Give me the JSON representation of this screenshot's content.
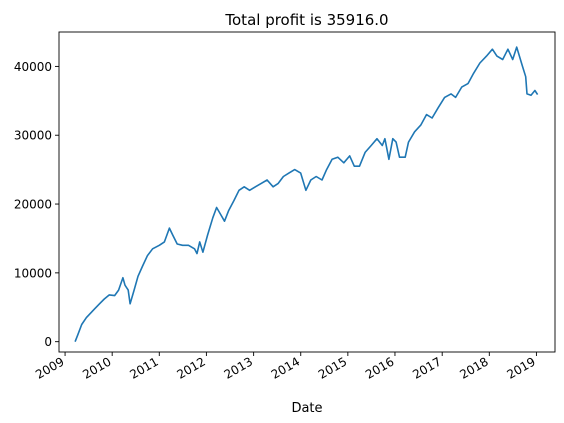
{
  "chart_data": {
    "type": "line",
    "title": "Total profit is 35916.0",
    "xlabel": "Date",
    "ylabel": "",
    "xlim": [
      "2008-11-15",
      "2019-05-25"
    ],
    "ylim": [
      -1500,
      45000
    ],
    "x_ticks": [
      {
        "date": "2009-01-01",
        "label": "2009"
      },
      {
        "date": "2010-01-01",
        "label": "2010"
      },
      {
        "date": "2011-01-01",
        "label": "2011"
      },
      {
        "date": "2012-01-01",
        "label": "2012"
      },
      {
        "date": "2013-01-01",
        "label": "2013"
      },
      {
        "date": "2014-01-01",
        "label": "2014"
      },
      {
        "date": "2015-01-01",
        "label": "2015"
      },
      {
        "date": "2016-01-01",
        "label": "2016"
      },
      {
        "date": "2017-01-01",
        "label": "2017"
      },
      {
        "date": "2018-01-01",
        "label": "2018"
      },
      {
        "date": "2019-01-01",
        "label": "2019"
      }
    ],
    "y_ticks": [
      0,
      10000,
      20000,
      30000,
      40000
    ],
    "grid": false,
    "legend": "none",
    "line_color": "#1f77b4",
    "series": [
      {
        "points": [
          [
            "2009-03-20",
            0
          ],
          [
            "2009-04-10",
            1000
          ],
          [
            "2009-05-10",
            2500
          ],
          [
            "2009-06-15",
            3500
          ],
          [
            "2009-07-20",
            4200
          ],
          [
            "2009-08-20",
            4800
          ],
          [
            "2009-09-25",
            5500
          ],
          [
            "2009-11-01",
            6200
          ],
          [
            "2009-12-10",
            6800
          ],
          [
            "2010-01-20",
            6700
          ],
          [
            "2010-02-20",
            7500
          ],
          [
            "2010-03-25",
            9300
          ],
          [
            "2010-04-10",
            8200
          ],
          [
            "2010-05-05",
            7500
          ],
          [
            "2010-05-20",
            5500
          ],
          [
            "2010-06-20",
            7500
          ],
          [
            "2010-07-20",
            9500
          ],
          [
            "2010-08-25",
            11000
          ],
          [
            "2010-10-01",
            12500
          ],
          [
            "2010-11-10",
            13500
          ],
          [
            "2011-01-01",
            14000
          ],
          [
            "2011-02-10",
            14500
          ],
          [
            "2011-03-20",
            16500
          ],
          [
            "2011-04-15",
            15500
          ],
          [
            "2011-05-20",
            14200
          ],
          [
            "2011-07-01",
            14000
          ],
          [
            "2011-08-15",
            14000
          ],
          [
            "2011-10-01",
            13500
          ],
          [
            "2011-10-20",
            12800
          ],
          [
            "2011-11-10",
            14500
          ],
          [
            "2011-12-05",
            13000
          ],
          [
            "2012-01-10",
            15500
          ],
          [
            "2012-02-20",
            18000
          ],
          [
            "2012-03-20",
            19500
          ],
          [
            "2012-04-20",
            18500
          ],
          [
            "2012-05-20",
            17500
          ],
          [
            "2012-06-20",
            19000
          ],
          [
            "2012-08-01",
            20500
          ],
          [
            "2012-09-10",
            22000
          ],
          [
            "2012-10-20",
            22500
          ],
          [
            "2012-12-01",
            22000
          ],
          [
            "2013-01-15",
            22500
          ],
          [
            "2013-03-01",
            23000
          ],
          [
            "2013-04-15",
            23500
          ],
          [
            "2013-06-01",
            22500
          ],
          [
            "2013-07-10",
            23000
          ],
          [
            "2013-08-20",
            24000
          ],
          [
            "2013-10-01",
            24500
          ],
          [
            "2013-11-15",
            25000
          ],
          [
            "2014-01-01",
            24500
          ],
          [
            "2014-02-10",
            22000
          ],
          [
            "2014-03-20",
            23500
          ],
          [
            "2014-05-01",
            24000
          ],
          [
            "2014-06-15",
            23500
          ],
          [
            "2014-07-20",
            25000
          ],
          [
            "2014-09-01",
            26500
          ],
          [
            "2014-10-15",
            26800
          ],
          [
            "2014-12-01",
            26000
          ],
          [
            "2015-01-15",
            27000
          ],
          [
            "2015-02-20",
            25500
          ],
          [
            "2015-04-01",
            25500
          ],
          [
            "2015-05-15",
            27500
          ],
          [
            "2015-07-01",
            28500
          ],
          [
            "2015-08-15",
            29500
          ],
          [
            "2015-09-25",
            28500
          ],
          [
            "2015-10-15",
            29500
          ],
          [
            "2015-11-15",
            26500
          ],
          [
            "2015-12-15",
            29500
          ],
          [
            "2016-01-10",
            29000
          ],
          [
            "2016-02-05",
            26800
          ],
          [
            "2016-03-20",
            26800
          ],
          [
            "2016-04-15",
            29000
          ],
          [
            "2016-06-01",
            30500
          ],
          [
            "2016-07-20",
            31500
          ],
          [
            "2016-09-01",
            33000
          ],
          [
            "2016-10-15",
            32500
          ],
          [
            "2016-12-01",
            34000
          ],
          [
            "2017-01-20",
            35500
          ],
          [
            "2017-03-10",
            36000
          ],
          [
            "2017-04-15",
            35500
          ],
          [
            "2017-06-01",
            37000
          ],
          [
            "2017-07-20",
            37500
          ],
          [
            "2017-09-01",
            39000
          ],
          [
            "2017-10-20",
            40500
          ],
          [
            "2017-12-10",
            41500
          ],
          [
            "2018-01-25",
            42500
          ],
          [
            "2018-03-01",
            41500
          ],
          [
            "2018-04-15",
            41000
          ],
          [
            "2018-05-25",
            42500
          ],
          [
            "2018-07-01",
            41000
          ],
          [
            "2018-08-01",
            42800
          ],
          [
            "2018-09-15",
            40000
          ],
          [
            "2018-10-10",
            38500
          ],
          [
            "2018-10-20",
            36000
          ],
          [
            "2018-11-20",
            35800
          ],
          [
            "2018-12-20",
            36500
          ],
          [
            "2019-01-10",
            35900
          ]
        ]
      }
    ]
  }
}
